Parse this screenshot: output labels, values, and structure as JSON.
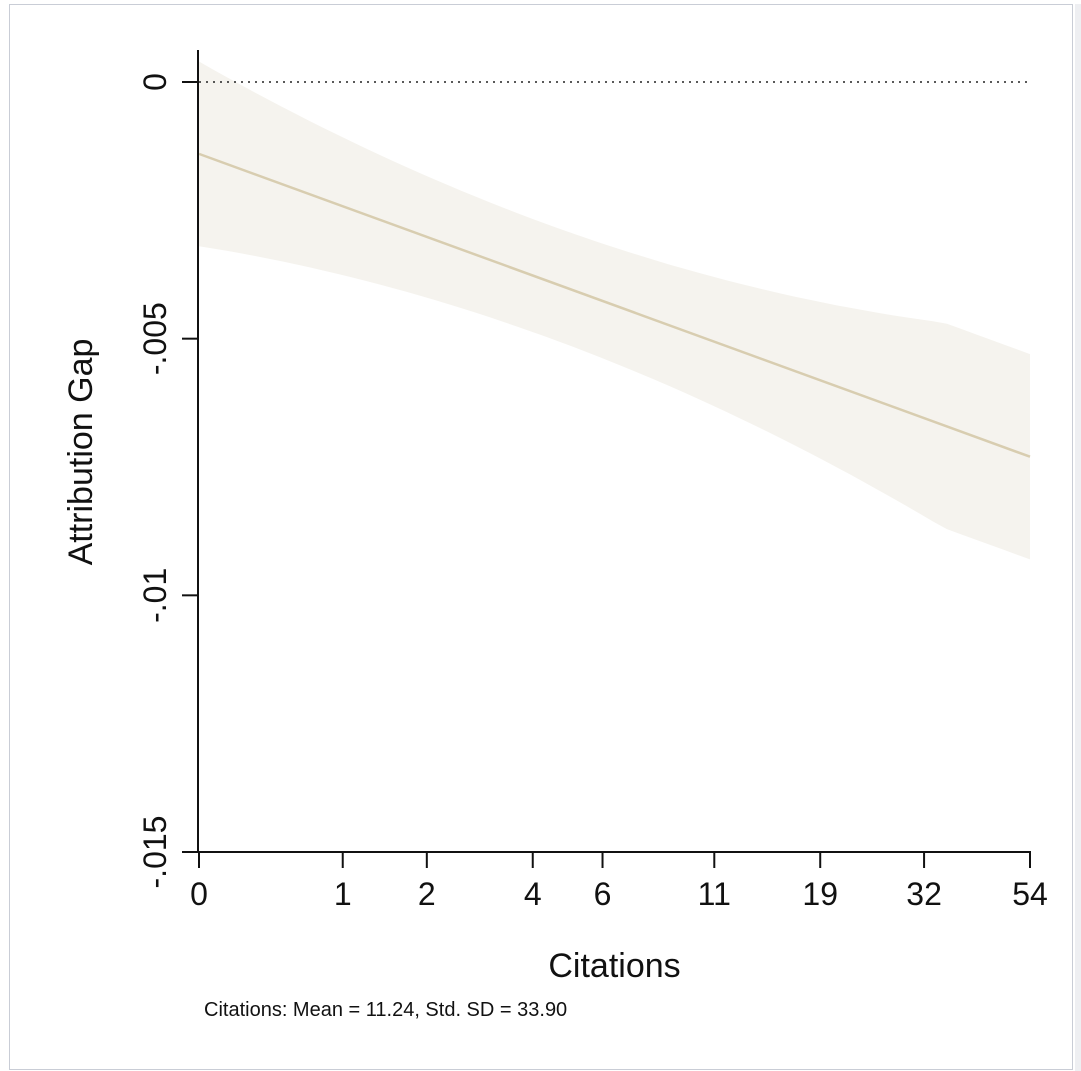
{
  "chart_data": {
    "type": "line",
    "xlabel": "Citations",
    "ylabel": "Attribution Gap",
    "x_tick_labels": [
      "0",
      "1",
      "2",
      "4",
      "6",
      "11",
      "19",
      "32",
      "54"
    ],
    "y_tick_labels": [
      "0",
      "-.005",
      "-.01",
      "-.015"
    ],
    "y_ticks": [
      0,
      -0.005,
      -0.01,
      -0.015
    ],
    "ylim": [
      -0.015,
      0.0006
    ],
    "x_scale": "log(1+x)",
    "series": [
      {
        "x": [
          0,
          54
        ],
        "values": [
          -0.0014,
          -0.0073
        ],
        "ci_lower": [
          -0.0034,
          -0.0093
        ],
        "ci_upper": [
          0.0006,
          -0.0053
        ]
      }
    ],
    "reference_line": {
      "y": 0,
      "style": "dotted"
    },
    "note": "Citations: Mean = 11.24, Std. SD = 33.90",
    "colors": {
      "line": "#d8cdb0",
      "band": "#f5f3ee",
      "axis": "#111111"
    },
    "grid": false
  }
}
